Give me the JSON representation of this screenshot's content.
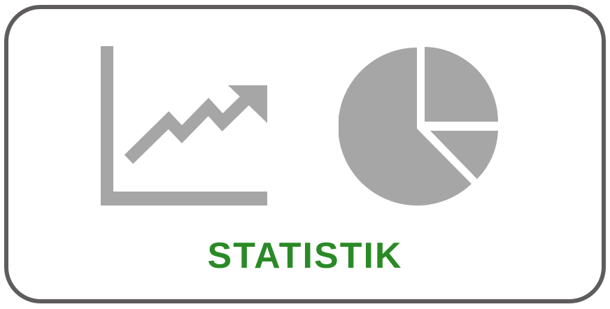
{
  "tile": {
    "label": "STATISTIK",
    "label_color": "#2a8a26",
    "border_color": "#5f5c5c",
    "icon_color": "#a6a6a6",
    "icons": [
      "line-chart-icon",
      "pie-chart-icon"
    ]
  }
}
